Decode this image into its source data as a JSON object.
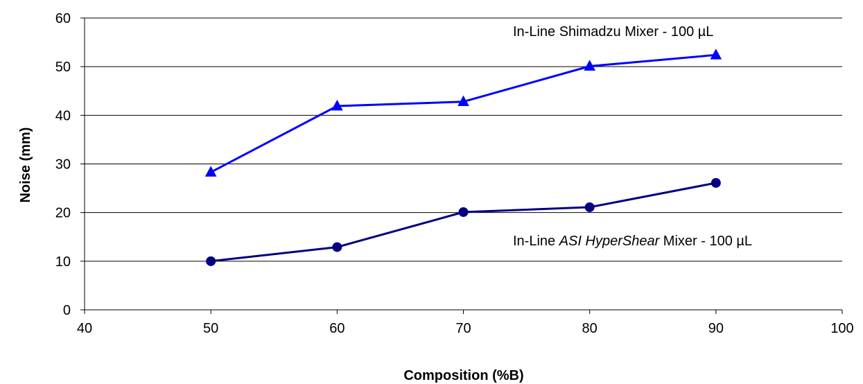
{
  "chart_data": {
    "type": "line",
    "xlabel": "Composition (%B)",
    "ylabel": "Noise (mm)",
    "xlim": [
      40,
      100
    ],
    "ylim": [
      0,
      60
    ],
    "xticks": [
      "40",
      "50",
      "60",
      "70",
      "80",
      "90",
      "100"
    ],
    "yticks": [
      "0",
      "10",
      "20",
      "30",
      "40",
      "50",
      "60"
    ],
    "grid": "horizontal",
    "series": [
      {
        "name": "In-Line Shimadzu Mixer - 100 µL",
        "label_parts": [
          "In-Line Shimadzu Mixer - 100 µL"
        ],
        "marker": "triangle",
        "color": "#0000ff",
        "x": [
          50,
          60,
          70,
          80,
          90
        ],
        "values": [
          28.3,
          41.9,
          42.8,
          50.1,
          52.4
        ]
      },
      {
        "name": "In-Line ASI HyperShear Mixer - 100 µL",
        "label_parts": [
          "In-Line ",
          "ASI HyperShear",
          " Mixer - 100 µL"
        ],
        "marker": "circle",
        "color": "#000080",
        "x": [
          50,
          60,
          70,
          80,
          90
        ],
        "values": [
          10.0,
          12.9,
          20.1,
          21.1,
          26.1
        ]
      }
    ]
  }
}
